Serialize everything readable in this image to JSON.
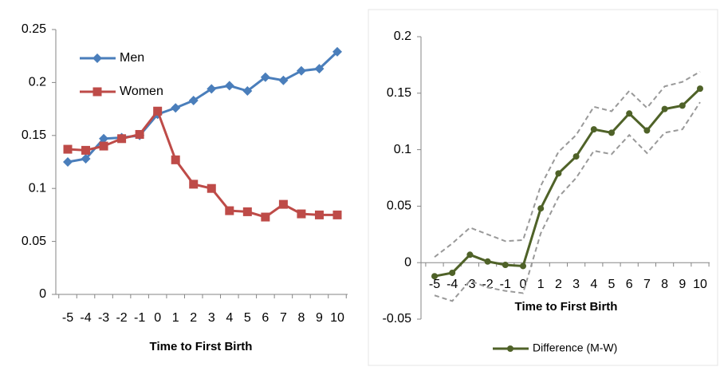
{
  "chart_data": [
    {
      "type": "line",
      "x_label": "Time to First Birth",
      "categories": [
        "-5",
        "-4",
        "-3",
        "-2",
        "-1",
        "0",
        "1",
        "2",
        "3",
        "4",
        "5",
        "6",
        "7",
        "8",
        "9",
        "10"
      ],
      "series": [
        {
          "name": "Men",
          "color": "#4a7ebb",
          "marker": "diamond",
          "values": [
            0.125,
            0.128,
            0.147,
            0.148,
            0.15,
            0.17,
            0.176,
            0.183,
            0.194,
            0.197,
            0.192,
            0.205,
            0.202,
            0.211,
            0.213,
            0.229
          ]
        },
        {
          "name": "Women",
          "color": "#be4b48",
          "marker": "square",
          "values": [
            0.137,
            0.136,
            0.14,
            0.147,
            0.151,
            0.173,
            0.127,
            0.104,
            0.1,
            0.079,
            0.078,
            0.073,
            0.085,
            0.076,
            0.075,
            0.075
          ]
        }
      ],
      "ylim": [
        0,
        0.25
      ],
      "yticks": [
        0,
        0.05,
        0.1,
        0.15,
        0.2,
        0.25
      ],
      "legend": "upper left"
    },
    {
      "type": "line",
      "x_label": "Time to First Birth",
      "categories": [
        "-5",
        "-4",
        "-3",
        "-2",
        "-1",
        "0",
        "1",
        "2",
        "3",
        "4",
        "5",
        "6",
        "7",
        "8",
        "9",
        "10"
      ],
      "series": [
        {
          "color": "#999999",
          "dash": true,
          "values": [
            0.005,
            0.017,
            0.031,
            0.025,
            0.019,
            0.02,
            0.068,
            0.098,
            0.113,
            0.138,
            0.134,
            0.152,
            0.137,
            0.156,
            0.16,
            0.169
          ]
        },
        {
          "color": "#999999",
          "dash": true,
          "values": [
            -0.029,
            -0.034,
            -0.016,
            -0.022,
            -0.025,
            -0.027,
            0.026,
            0.058,
            0.075,
            0.099,
            0.096,
            0.113,
            0.097,
            0.115,
            0.118,
            0.142
          ]
        },
        {
          "name": "Difference (M-W)",
          "color": "#4f6228",
          "marker": "circle",
          "values": [
            -0.012,
            -0.009,
            0.007,
            0.001,
            -0.002,
            -0.003,
            0.048,
            0.079,
            0.094,
            0.118,
            0.115,
            0.132,
            0.117,
            0.136,
            0.139,
            0.154
          ]
        }
      ],
      "ylim": [
        -0.05,
        0.2
      ],
      "yticks": [
        -0.05,
        0,
        0.05,
        0.1,
        0.15,
        0.2
      ],
      "legend": "bottom"
    }
  ]
}
